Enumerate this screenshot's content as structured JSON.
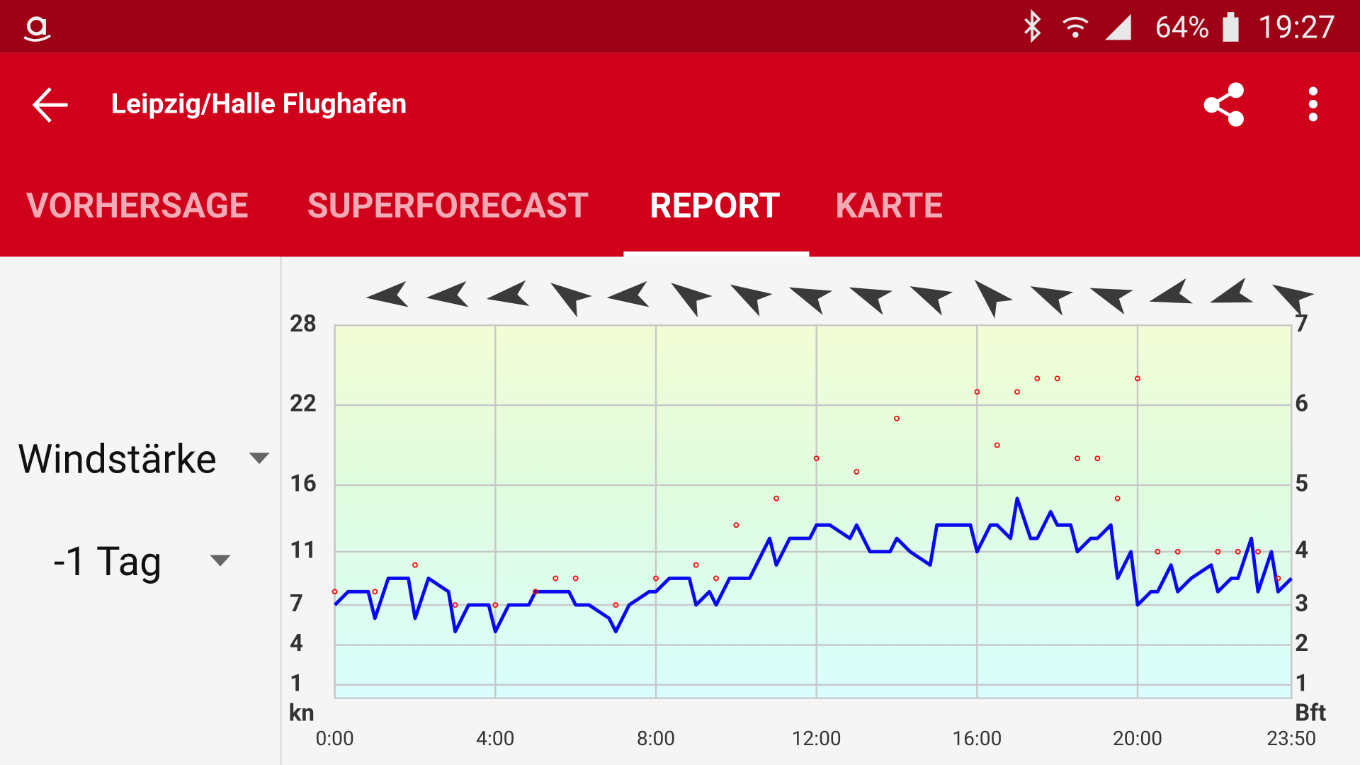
{
  "status_bar": {
    "battery": "64%",
    "time": "19:27"
  },
  "app_bar": {
    "title": "Leipzig/Halle Flughafen"
  },
  "tabs": [
    "VORHERSAGE",
    "SUPERFORECAST",
    "REPORT",
    "KARTE"
  ],
  "selected_tab": 2,
  "controls": {
    "parameter": "Windstärke",
    "period": "-1 Tag"
  },
  "chart_data": {
    "type": "line",
    "xlim": [
      0,
      1430
    ],
    "xticks": [
      {
        "value": 0,
        "label": "0:00"
      },
      {
        "value": 240,
        "label": "4:00"
      },
      {
        "value": 480,
        "label": "8:00"
      },
      {
        "value": 720,
        "label": "12:00"
      },
      {
        "value": 960,
        "label": "16:00"
      },
      {
        "value": 1200,
        "label": "20:00"
      },
      {
        "value": 1430,
        "label": "23:50"
      }
    ],
    "ylim": [
      0,
      28
    ],
    "yticks": [
      1,
      4,
      7,
      11,
      16,
      22,
      28
    ],
    "ylabel": "kn",
    "y2ticks": [
      1,
      2,
      3,
      4,
      5,
      6,
      7
    ],
    "y2label": "Bft",
    "grid": true,
    "series": [
      {
        "mark": "line",
        "color": "#0a0af0",
        "x": [
          0,
          20,
          50,
          60,
          80,
          110,
          120,
          140,
          170,
          180,
          200,
          230,
          240,
          260,
          290,
          300,
          350,
          360,
          380,
          410,
          420,
          440,
          470,
          480,
          500,
          530,
          540,
          560,
          570,
          590,
          620,
          650,
          660,
          680,
          710,
          720,
          740,
          770,
          780,
          800,
          830,
          840,
          860,
          890,
          900,
          950,
          960,
          980,
          990,
          1010,
          1020,
          1040,
          1050,
          1070,
          1080,
          1100,
          1110,
          1130,
          1140,
          1160,
          1170,
          1190,
          1200,
          1220,
          1230,
          1250,
          1260,
          1280,
          1310,
          1320,
          1340,
          1350,
          1370,
          1380,
          1400,
          1410,
          1430
        ],
        "values": [
          7,
          8,
          8,
          6,
          9,
          9,
          6,
          9,
          8,
          5,
          7,
          7,
          5,
          7,
          7,
          8,
          8,
          7,
          7,
          6,
          5,
          7,
          8,
          8,
          9,
          9,
          7,
          8,
          7,
          9,
          9,
          12,
          10,
          12,
          12,
          13,
          13,
          12,
          13,
          11,
          11,
          12,
          11,
          10,
          13,
          13,
          11,
          13,
          13,
          12,
          15,
          12,
          12,
          14,
          13,
          13,
          11,
          12,
          12,
          13,
          9,
          11,
          7,
          8,
          8,
          10,
          8,
          9,
          10,
          8,
          9,
          9,
          12,
          8,
          11,
          8,
          9
        ]
      },
      {
        "mark": "dots",
        "color": "#ee1111",
        "x": [
          0,
          60,
          120,
          180,
          240,
          300,
          330,
          360,
          420,
          480,
          540,
          570,
          600,
          660,
          720,
          780,
          840,
          960,
          990,
          1020,
          1050,
          1080,
          1110,
          1140,
          1170,
          1200,
          1230,
          1260,
          1320,
          1350,
          1380,
          1410
        ],
        "values": [
          8,
          8,
          10,
          7,
          7,
          8,
          9,
          9,
          7,
          9,
          10,
          9,
          13,
          15,
          18,
          17,
          21,
          23,
          19,
          23,
          24,
          24,
          18,
          18,
          15,
          24,
          11,
          11,
          11,
          11,
          11,
          9
        ]
      }
    ],
    "direction": {
      "x": [
        80,
        170,
        260,
        350,
        440,
        530,
        620,
        710,
        800,
        890,
        980,
        1070,
        1160,
        1250,
        1340,
        1430
      ],
      "values": [
        265,
        265,
        262,
        305,
        265,
        305,
        300,
        292,
        292,
        295,
        315,
        295,
        290,
        255,
        252,
        300
      ]
    }
  }
}
